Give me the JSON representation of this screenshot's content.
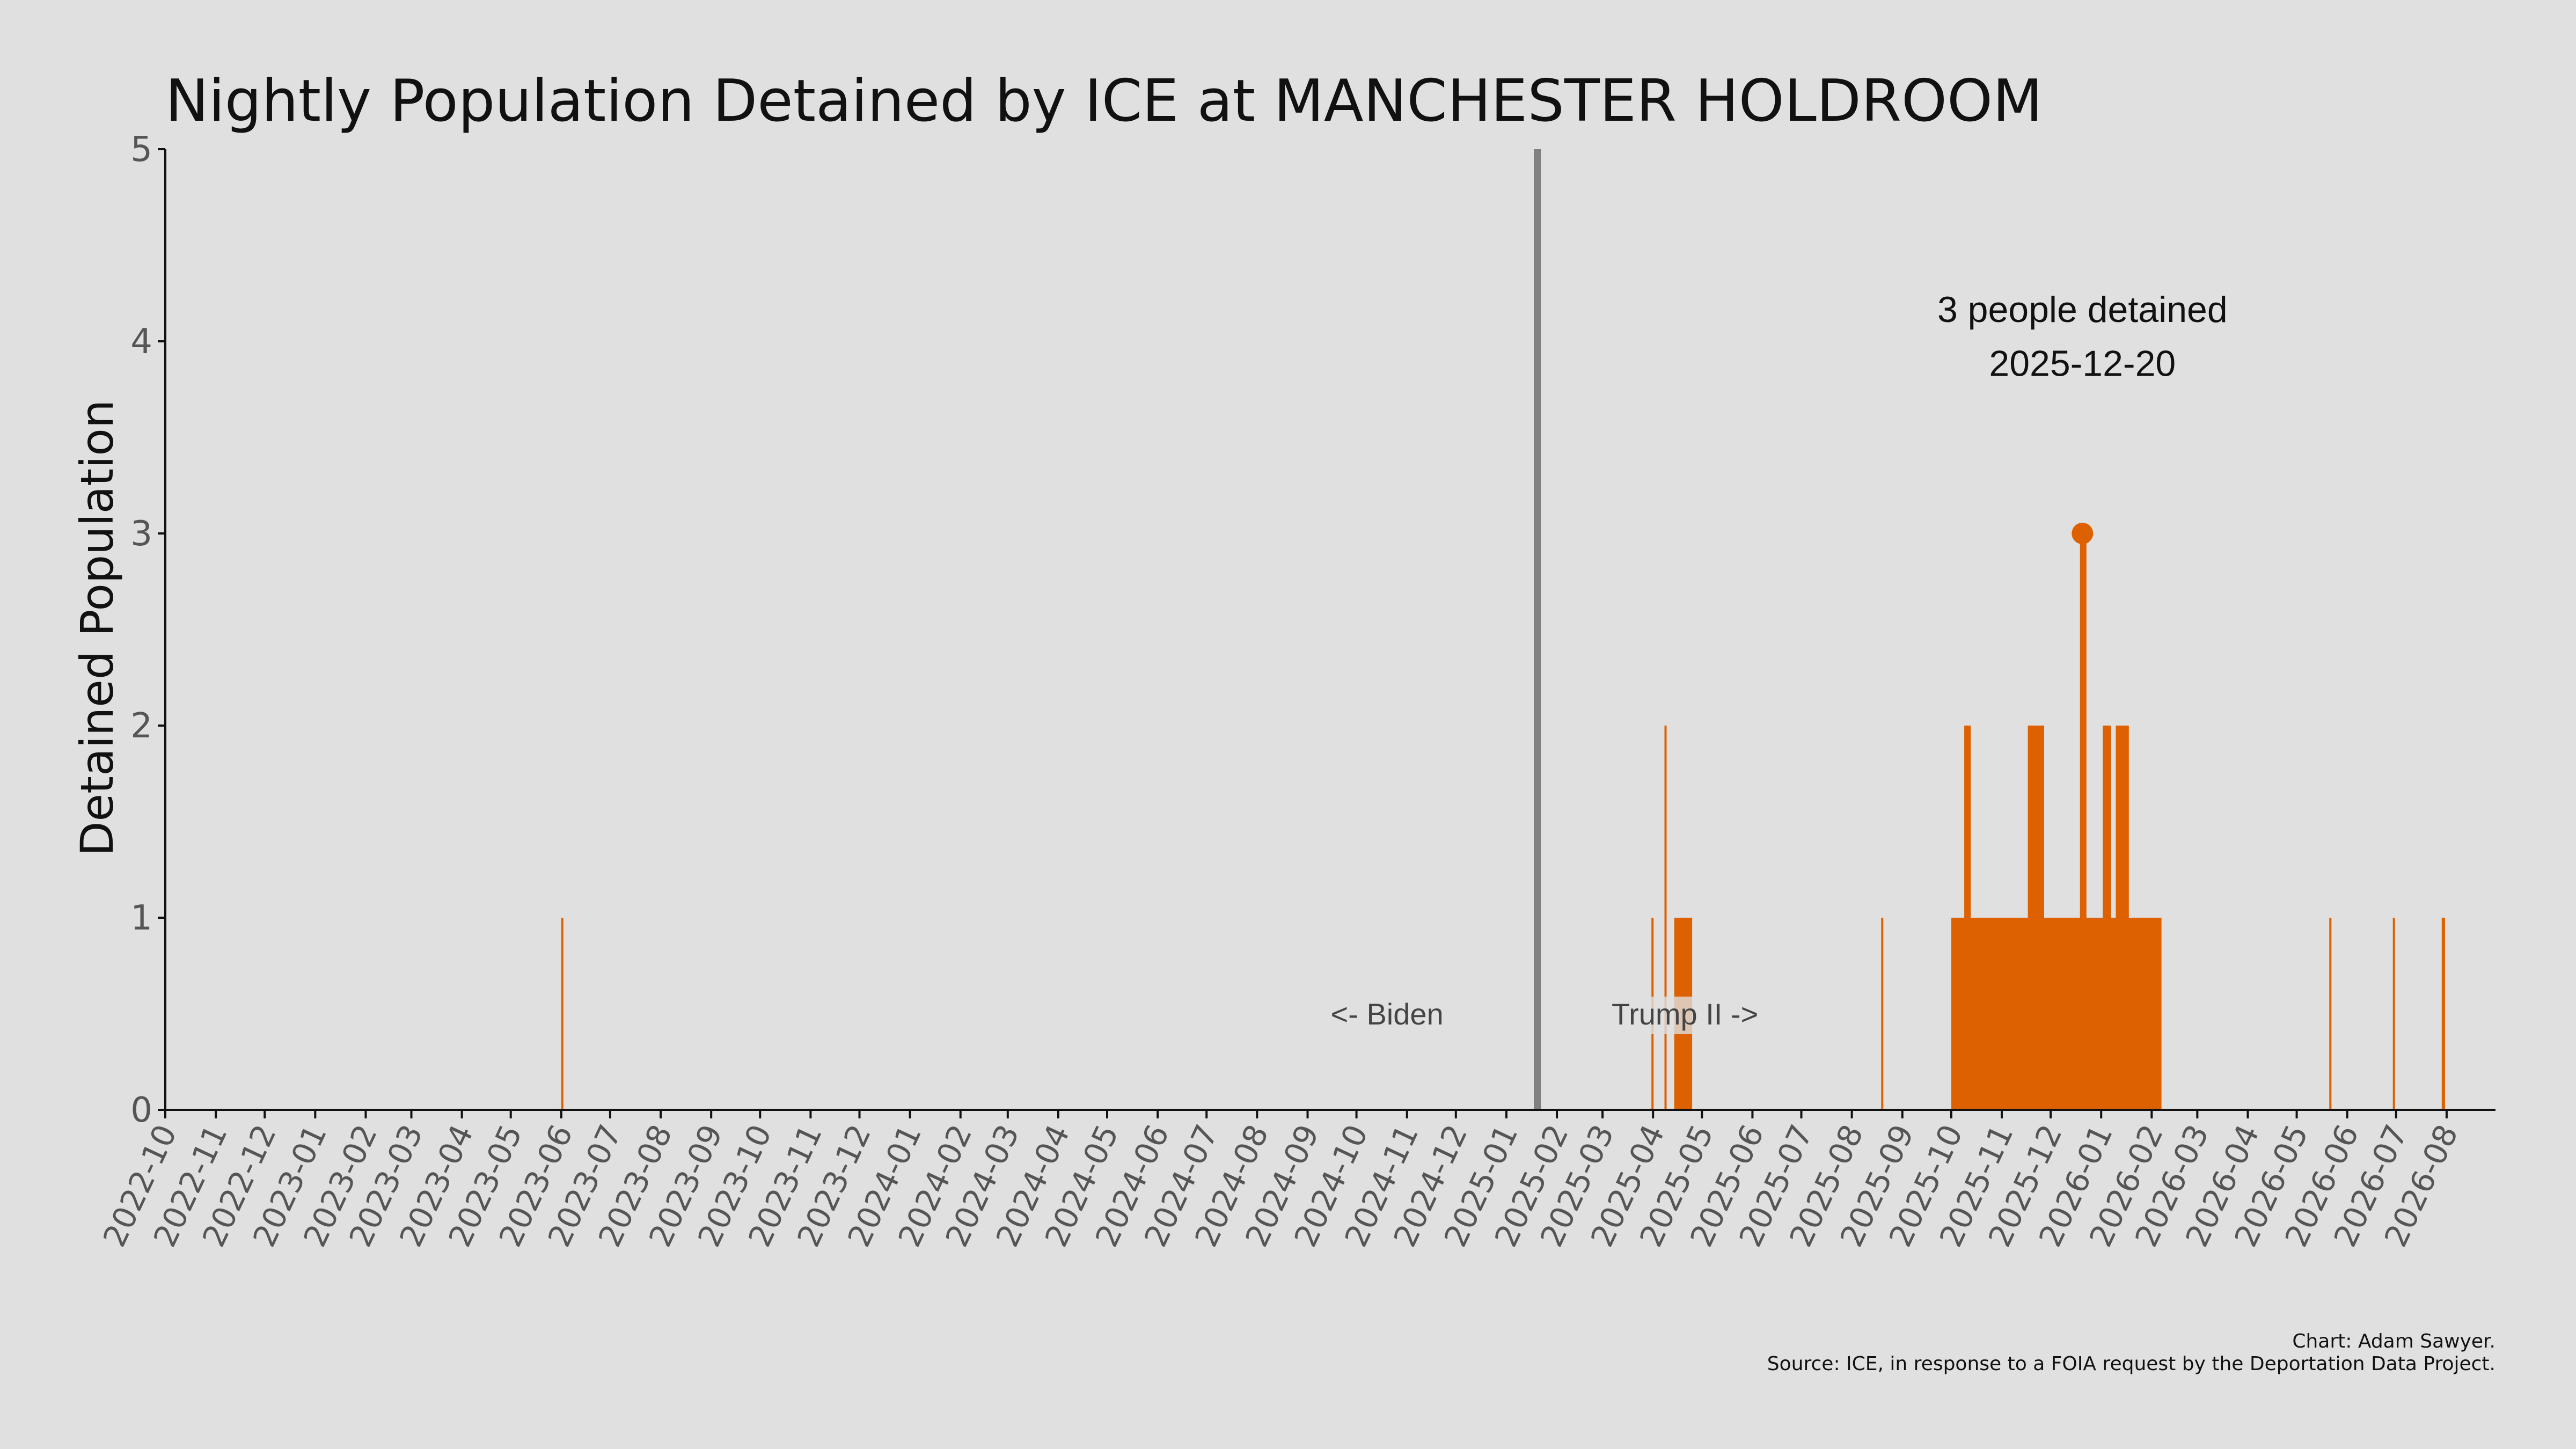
{
  "chart_data": {
    "type": "bar",
    "title": "Nightly Population Detained by ICE at MANCHESTER HOLDROOM",
    "ylabel": "Detained Population",
    "xlabel": "",
    "ylim": [
      0,
      5
    ],
    "yticks": [
      "0",
      "1",
      "2",
      "3",
      "4",
      "5"
    ],
    "xlim": [
      "2022-10-01",
      "2026-08-31"
    ],
    "xtick_labels": [
      "2022-10",
      "2022-11",
      "2022-12",
      "2023-01",
      "2023-02",
      "2023-03",
      "2023-04",
      "2023-05",
      "2023-06",
      "2023-07",
      "2023-08",
      "2023-09",
      "2023-10",
      "2023-11",
      "2023-12",
      "2024-01",
      "2024-02",
      "2024-03",
      "2024-04",
      "2024-05",
      "2024-06",
      "2024-07",
      "2024-08",
      "2024-09",
      "2024-10",
      "2024-11",
      "2024-12",
      "2025-01",
      "2025-02",
      "2025-03",
      "2025-04",
      "2025-05",
      "2025-06",
      "2025-07",
      "2025-08",
      "2025-09",
      "2025-10",
      "2025-11",
      "2025-12",
      "2026-01",
      "2026-02",
      "2026-03",
      "2026-04",
      "2026-05",
      "2026-06",
      "2026-07",
      "2026-08"
    ],
    "grid": false,
    "bar_color": "#dd6100",
    "divider_color": "#808080",
    "series": [
      {
        "values": [
          {
            "start": "2023-06-01",
            "end": "2023-06-01",
            "y": 1
          },
          {
            "start": "2025-03-31",
            "end": "2025-03-31",
            "y": 1
          },
          {
            "start": "2025-04-08",
            "end": "2025-04-08",
            "y": 2
          },
          {
            "start": "2025-04-14",
            "end": "2025-04-24",
            "y": 1
          },
          {
            "start": "2025-08-19",
            "end": "2025-08-19",
            "y": 1
          },
          {
            "start": "2025-10-01",
            "end": "2026-02-06",
            "y": 1
          },
          {
            "start": "2025-10-09",
            "end": "2025-10-12",
            "y": 2
          },
          {
            "start": "2025-11-17",
            "end": "2025-11-26",
            "y": 2
          },
          {
            "start": "2025-12-19",
            "end": "2025-12-22",
            "y": 3
          },
          {
            "start": "2026-01-02",
            "end": "2026-01-06",
            "y": 2
          },
          {
            "start": "2026-01-10",
            "end": "2026-01-17",
            "y": 2
          },
          {
            "start": "2026-05-21",
            "end": "2026-05-21",
            "y": 1
          },
          {
            "start": "2026-06-29",
            "end": "2026-06-29",
            "y": 1
          },
          {
            "start": "2026-07-29",
            "end": "2026-07-30",
            "y": 1
          }
        ]
      }
    ],
    "divider_date": "2025-01-20",
    "divider_labels": {
      "left": "<- Biden",
      "right": "Trump II ->"
    },
    "peak": {
      "date": "2025-12-20",
      "y": 3,
      "label_line1": "3 people detained",
      "label_line2": "2025-12-20"
    }
  },
  "caption": {
    "line1": "Chart: Adam Sawyer.",
    "line2": "Source: ICE, in response to a FOIA request by the Deportation Data Project."
  }
}
